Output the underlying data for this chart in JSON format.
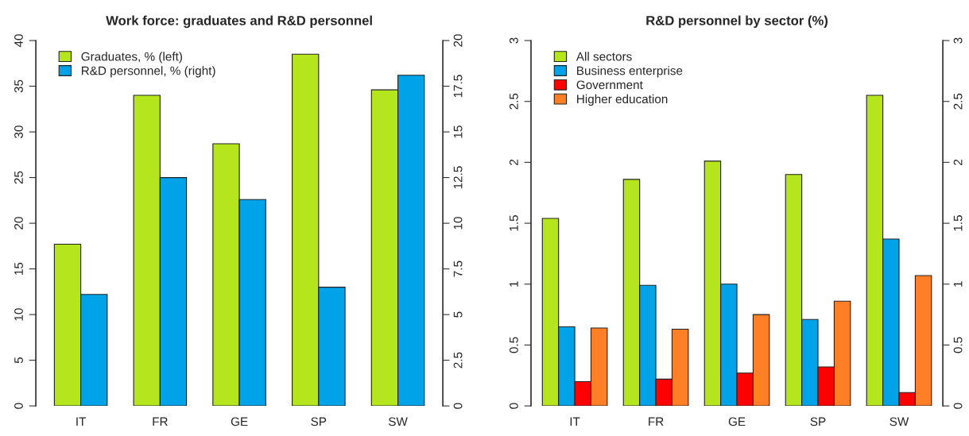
{
  "chart_data": [
    {
      "type": "bar",
      "title": "Work force: graduates and R&D personnel",
      "categories": [
        "IT",
        "FR",
        "GE",
        "SP",
        "SW"
      ],
      "series": [
        {
          "name": "Graduates, % (left)",
          "color": "#b5e61d",
          "values": [
            17.7,
            34.0,
            28.7,
            38.5,
            34.6
          ]
        },
        {
          "name": "R&D personnel, % (right)",
          "color": "#00a2e8",
          "values": [
            6.1,
            12.5,
            11.3,
            6.5,
            18.1
          ],
          "axis": "y2"
        }
      ],
      "ylim": [
        0,
        40
      ],
      "yticks": [
        0,
        5,
        10,
        15,
        20,
        25,
        30,
        35,
        40
      ],
      "y2lim": [
        0,
        20
      ],
      "y2ticks": [
        0,
        2.5,
        5,
        7.5,
        10,
        12.5,
        15,
        17.5,
        20
      ],
      "legend": "top left",
      "grid": false
    },
    {
      "type": "bar",
      "title": "R&D personnel by sector (%)",
      "categories": [
        "IT",
        "FR",
        "GE",
        "SP",
        "SW"
      ],
      "series": [
        {
          "name": "All sectors",
          "color": "#b5e61d",
          "values": [
            1.54,
            1.86,
            2.01,
            1.9,
            2.55
          ]
        },
        {
          "name": "Business enterprise",
          "color": "#00a2e8",
          "values": [
            0.65,
            0.99,
            1.0,
            0.71,
            1.37
          ]
        },
        {
          "name": "Government",
          "color": "#ff0000",
          "values": [
            0.2,
            0.22,
            0.27,
            0.32,
            0.11
          ]
        },
        {
          "name": "Higher education",
          "color": "#ff7f27",
          "values": [
            0.64,
            0.63,
            0.75,
            0.86,
            1.07
          ]
        }
      ],
      "ylim": [
        0,
        3
      ],
      "yticks": [
        0,
        0.5,
        1,
        1.5,
        2,
        2.5,
        3
      ],
      "y2lim": [
        0,
        3
      ],
      "y2ticks": [
        0,
        0.5,
        1,
        1.5,
        2,
        2.5,
        3
      ],
      "legend": "top left",
      "grid": false
    }
  ]
}
